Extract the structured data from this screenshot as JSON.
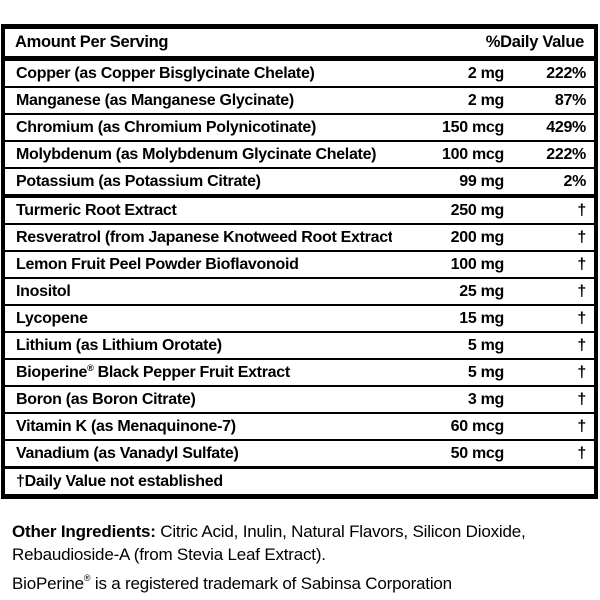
{
  "table": {
    "header": {
      "amount_label": "Amount Per Serving",
      "dv_label": "%Daily Value"
    },
    "rows": [
      {
        "name": "Copper (as Copper Bisglycinate Chelate)",
        "amount": "2 mg",
        "dv": "222%"
      },
      {
        "name": "Manganese (as Manganese Glycinate)",
        "amount": "2 mg",
        "dv": "87%"
      },
      {
        "name": "Chromium (as Chromium Polynicotinate)",
        "amount": "150 mcg",
        "dv": "429%"
      },
      {
        "name": "Molybdenum (as Molybdenum Glycinate Chelate)",
        "amount": "100 mcg",
        "dv": "222%"
      },
      {
        "name": "Potassium (as Potassium Citrate)",
        "amount": "99 mg",
        "dv": "2%"
      },
      {
        "name": "Turmeric Root Extract",
        "amount": "250 mg",
        "dv": "†"
      },
      {
        "name": "Resveratrol (from Japanese Knotweed Root Extract)",
        "amount": "200 mg",
        "dv": "†"
      },
      {
        "name": "Lemon Fruit Peel Powder Bioflavonoid",
        "amount": "100 mg",
        "dv": "†"
      },
      {
        "name": "Inositol",
        "amount": "25 mg",
        "dv": "†"
      },
      {
        "name": "Lycopene",
        "amount": "15 mg",
        "dv": "†"
      },
      {
        "name": "Lithium (as Lithium Orotate)",
        "amount": "5 mg",
        "dv": "†"
      },
      {
        "name": "Bioperine® Black Pepper Fruit Extract",
        "amount": "5 mg",
        "dv": "†"
      },
      {
        "name": "Boron (as Boron Citrate)",
        "amount": "3 mg",
        "dv": "†"
      },
      {
        "name": "Vitamin K (as Menaquinone-7)",
        "amount": "60 mcg",
        "dv": "†"
      },
      {
        "name": "Vanadium (as Vanadyl Sulfate)",
        "amount": "50 mcg",
        "dv": "†"
      }
    ],
    "footnote": "†Daily Value not established"
  },
  "footer": {
    "other_ingredients_label": "Other Ingredients:",
    "other_ingredients_text": " Citric Acid, Inulin, Natural Flavors, Silicon Dioxide, Rebaudioside-A (from Stevia Leaf Extract).",
    "trademark_text": "BioPerine® is a registered trademark of Sabinsa Corporation"
  },
  "colors": {
    "text": "#000000",
    "background": "#ffffff",
    "border": "#000000"
  }
}
